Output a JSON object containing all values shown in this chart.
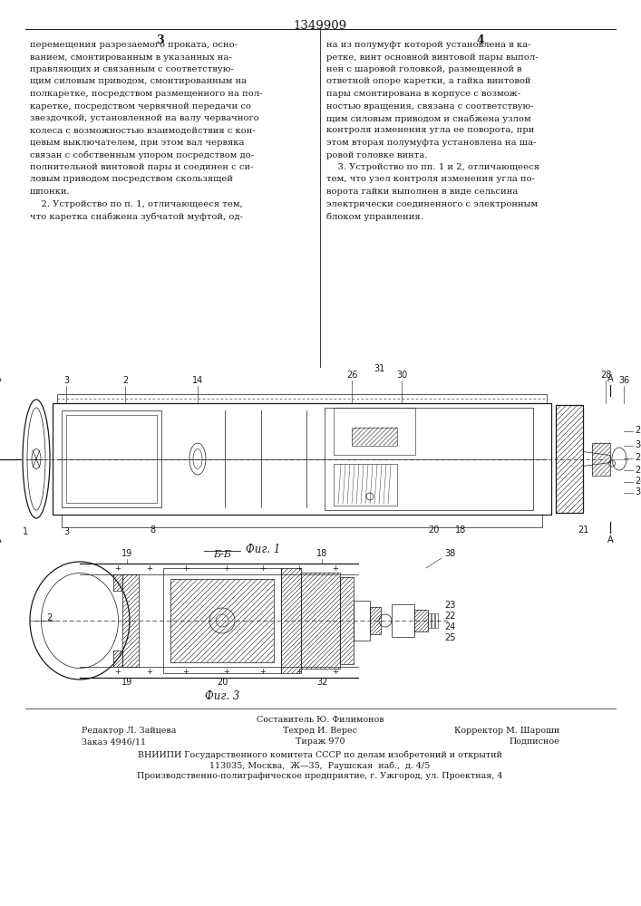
{
  "page_number": "1349909",
  "col_left_header": "3",
  "col_right_header": "4",
  "bg_color": "#ffffff",
  "text_color": "#1a1a1a",
  "fig1_caption": "Фиг. 1",
  "fig3_caption": "Фиг. 3",
  "bb_label": "Б-Б",
  "footer_left1": "Редактор Л. Зайцева",
  "footer_left2": "Заказ 4946/11",
  "footer_center1": "Составитель Ю. Филимонов",
  "footer_center2": "Техред И. Верес",
  "footer_center3": "Тираж 970",
  "footer_right1": "Корректор М. Шароши",
  "footer_right2": "Подписное",
  "footer_org1": "ВНИИПИ Государственного комитета СССР по делам изобретений и открытий",
  "footer_org2": "113035, Москва,  Ж—35,  Раушская  наб.,  д. 4/5",
  "footer_org3": "Производственно-полиграфическое предприятие, г. Ужгород, ул. Проектная, 4",
  "left_col_text": [
    "перемещения разрезаемого проката, осно-",
    "ванием, смонтированным в указанных на-",
    "правляющих и связанным с соответствую-",
    "щим силовым приводом, смонтированным на",
    "полкаретке, посредством размещенного на пол-",
    "каретке, посредством червячной передачи со",
    "звездочкой, установленной на валу червачного",
    "колеса с возможностью взаимодействия с кон-",
    "цевым выключателем, при этом вал червяка",
    "связан с собственным упором посредством до-",
    "полнительной винтовой пары и соединен с си-",
    "ловым приводом посредством скользящей",
    "шпонки.",
    "    2. Устройство по п. 1, отличающееся тем,",
    "что каретка снабжена зубчатой муфтой, од-"
  ],
  "right_col_text": [
    "на из полумуфт которой установлена в ка-",
    "ретке, винт основной винтовой пары выпол-",
    "нен с шаровой головкой, размещенной в",
    "ответной опоре каретки, а гайка винтовой",
    "пары смонтирована в корпусе с возмож-",
    "ностью вращения, связана с соответствую-",
    "щим силовым приводом и снабжена узлом",
    "контроля изменения угла ее поворота, при",
    "этом вторая полумуфта установлена на ша-",
    "ровой головке винта.",
    "    3. Устройство по пп. 1 и 2, отличающееся",
    "тем, что узел контроля изменения угла по-",
    "ворота гайки выполнен в виде сельсина",
    "электрически соединенного с электронным",
    "блоком управления."
  ]
}
